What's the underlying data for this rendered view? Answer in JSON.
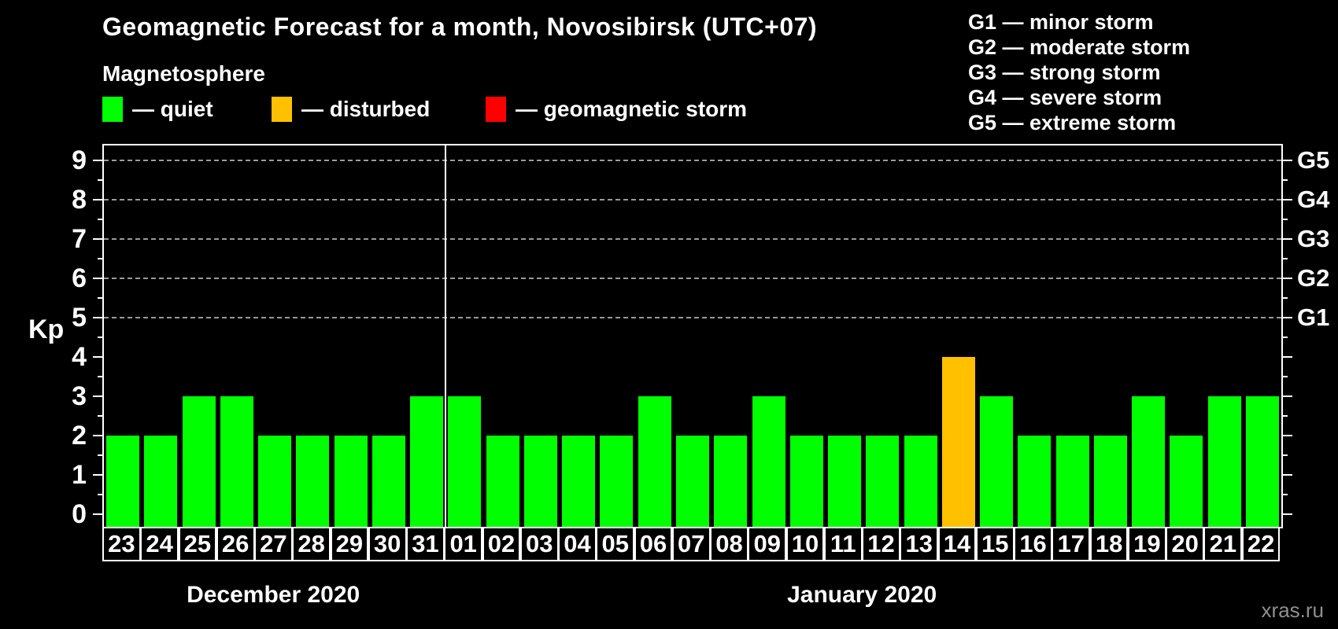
{
  "title": "Geomagnetic Forecast for a month, Novosibirsk (UTC+07)",
  "subtitle": "Magnetosphere",
  "legend": {
    "items": [
      {
        "name": "quiet",
        "label": "— quiet",
        "color": "#00ff00"
      },
      {
        "name": "disturbed",
        "label": "— disturbed",
        "color": "#ffc000"
      },
      {
        "name": "storm",
        "label": "— geomagnetic storm",
        "color": "#ff0000"
      }
    ]
  },
  "g_scale_legend": [
    "G1 — minor storm",
    "G2 — moderate storm",
    "G3 — strong storm",
    "G4 — severe storm",
    "G5 — extreme storm"
  ],
  "watermark": "xras.ru",
  "chart_data": {
    "type": "bar",
    "title": "Geomagnetic Forecast for a month, Novosibirsk (UTC+07)",
    "ylabel": "Kp",
    "ylim": [
      0,
      9.4
    ],
    "yticks": [
      "0",
      "1",
      "2",
      "3",
      "4",
      "5",
      "6",
      "7",
      "8",
      "9"
    ],
    "grid": "dashed horizontal lines at Kp 5-9 only",
    "right_axis": [
      {
        "kp": 5,
        "label": "G1"
      },
      {
        "kp": 6,
        "label": "G2"
      },
      {
        "kp": 7,
        "label": "G3"
      },
      {
        "kp": 8,
        "label": "G4"
      },
      {
        "kp": 9,
        "label": "G5"
      }
    ],
    "state_colors": {
      "quiet": "#00ff00",
      "disturbed": "#ffc000",
      "storm": "#ff0000"
    },
    "months": [
      {
        "label": "December 2020",
        "days": [
          {
            "day": "23",
            "kp": 2,
            "state": "quiet"
          },
          {
            "day": "24",
            "kp": 2,
            "state": "quiet"
          },
          {
            "day": "25",
            "kp": 3,
            "state": "quiet"
          },
          {
            "day": "26",
            "kp": 3,
            "state": "quiet"
          },
          {
            "day": "27",
            "kp": 2,
            "state": "quiet"
          },
          {
            "day": "28",
            "kp": 2,
            "state": "quiet"
          },
          {
            "day": "29",
            "kp": 2,
            "state": "quiet"
          },
          {
            "day": "30",
            "kp": 2,
            "state": "quiet"
          },
          {
            "day": "31",
            "kp": 3,
            "state": "quiet"
          }
        ]
      },
      {
        "label": "January 2020",
        "days": [
          {
            "day": "01",
            "kp": 3,
            "state": "quiet"
          },
          {
            "day": "02",
            "kp": 2,
            "state": "quiet"
          },
          {
            "day": "03",
            "kp": 2,
            "state": "quiet"
          },
          {
            "day": "04",
            "kp": 2,
            "state": "quiet"
          },
          {
            "day": "05",
            "kp": 2,
            "state": "quiet"
          },
          {
            "day": "06",
            "kp": 3,
            "state": "quiet"
          },
          {
            "day": "07",
            "kp": 2,
            "state": "quiet"
          },
          {
            "day": "08",
            "kp": 2,
            "state": "quiet"
          },
          {
            "day": "09",
            "kp": 3,
            "state": "quiet"
          },
          {
            "day": "10",
            "kp": 2,
            "state": "quiet"
          },
          {
            "day": "11",
            "kp": 2,
            "state": "quiet"
          },
          {
            "day": "12",
            "kp": 2,
            "state": "quiet"
          },
          {
            "day": "13",
            "kp": 2,
            "state": "quiet"
          },
          {
            "day": "14",
            "kp": 4,
            "state": "disturbed"
          },
          {
            "day": "15",
            "kp": 3,
            "state": "quiet"
          },
          {
            "day": "16",
            "kp": 2,
            "state": "quiet"
          },
          {
            "day": "17",
            "kp": 2,
            "state": "quiet"
          },
          {
            "day": "18",
            "kp": 2,
            "state": "quiet"
          },
          {
            "day": "19",
            "kp": 3,
            "state": "quiet"
          },
          {
            "day": "20",
            "kp": 2,
            "state": "quiet"
          },
          {
            "day": "21",
            "kp": 3,
            "state": "quiet"
          },
          {
            "day": "22",
            "kp": 3,
            "state": "quiet"
          }
        ]
      }
    ]
  }
}
